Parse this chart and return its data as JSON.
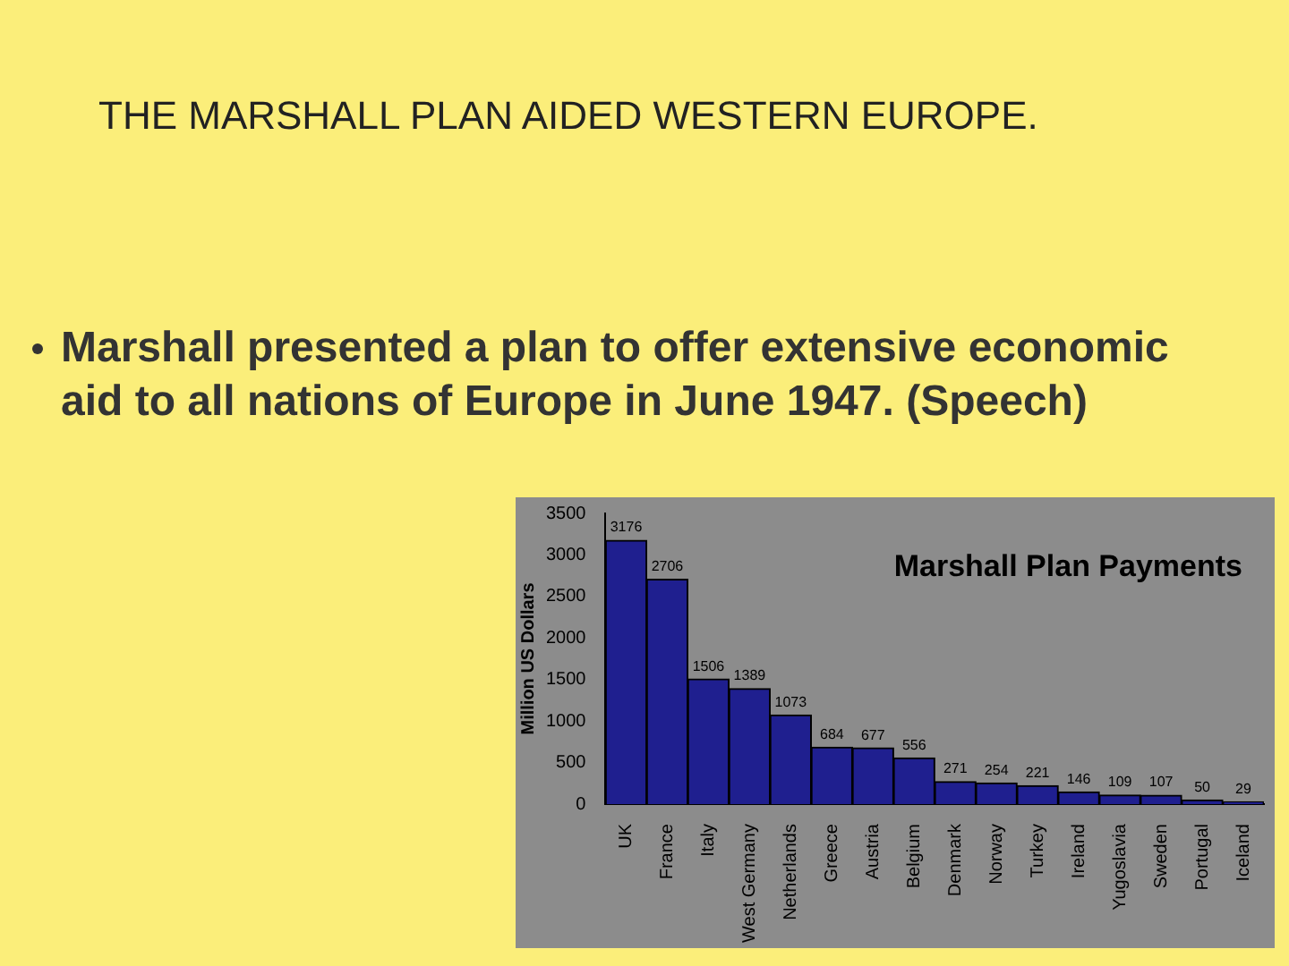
{
  "chart_data": {
    "type": "bar",
    "title": "Marshall Plan Payments",
    "ylabel": "Million US Dollars",
    "annotations": [
      "THE MARSHALL PLAN AIDED WESTERN EUROPE.",
      "Marshall presented a plan to offer extensive economic aid to all nations of Europe in June 1947. (Speech)"
    ],
    "categories": [
      "UK",
      "France",
      "Italy",
      "West Germany",
      "Netherlands",
      "Greece",
      "Austria",
      "Belgium",
      "Denmark",
      "Norway",
      "Turkey",
      "Ireland",
      "Yugoslavia",
      "Sweden",
      "Portugal",
      "Iceland"
    ],
    "values": [
      3176,
      2706,
      1506,
      1389,
      1073,
      684,
      677,
      556,
      271,
      254,
      221,
      146,
      109,
      107,
      50,
      29
    ],
    "color": "#1f1f8f",
    "ylim": [
      0,
      3500
    ],
    "yticks": [
      0,
      500,
      1000,
      1500,
      2000,
      2500,
      3000,
      3500
    ],
    "grid": false,
    "legend": false,
    "data_labels": true
  }
}
